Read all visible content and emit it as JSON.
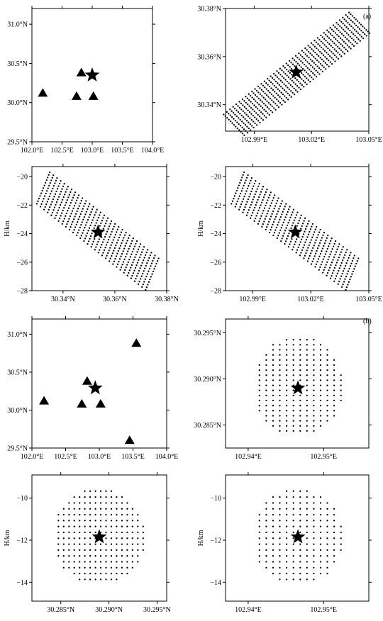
{
  "panel_labels": {
    "a": "(a)",
    "b": "(b)"
  },
  "chart_data": [
    {
      "id": "a-map",
      "type": "scatter",
      "title": "",
      "xlabel": "",
      "ylabel": "",
      "xlim": [
        102.0,
        104.0
      ],
      "ylim": [
        29.5,
        31.2
      ],
      "xticks": [
        102.0,
        102.5,
        103.0,
        103.5,
        104.0
      ],
      "xtick_labels": [
        "102.0°E",
        "102.5°E",
        "103.0°E",
        "103.5°E",
        "104.0°E"
      ],
      "yticks": [
        29.5,
        30.0,
        30.5,
        31.0
      ],
      "ytick_labels": [
        "29.5°N",
        "30.0°N",
        "30.5°N",
        "31.0°N"
      ],
      "series": [
        {
          "marker": "triangle",
          "points": [
            [
              102.18,
              30.12
            ],
            [
              102.82,
              30.38
            ],
            [
              102.74,
              30.08
            ],
            [
              103.02,
              30.08
            ]
          ]
        },
        {
          "marker": "star",
          "points": [
            [
              103.0,
              30.35
            ]
          ]
        }
      ]
    },
    {
      "id": "a-grid-map",
      "type": "scatter",
      "title": "",
      "xlabel": "",
      "ylabel": "",
      "xlim": [
        102.975,
        103.05
      ],
      "ylim": [
        30.329,
        30.38
      ],
      "xticks": [
        102.99,
        103.02,
        103.05
      ],
      "xtick_labels": [
        "102.99°E",
        "103.02°E",
        "103.05°E"
      ],
      "yticks": [
        30.34,
        30.36,
        30.38
      ],
      "ytick_labels": [
        "30.34°N",
        "30.36°N",
        "30.38°N"
      ],
      "grid_cloud": {
        "center": [
          103.012,
          30.353
        ],
        "ux": 0.0328,
        "uy": 0.0212,
        "vx": -0.0056,
        "vy": 0.0045,
        "du": 0.05,
        "dv": 0.16
      },
      "series": [
        {
          "marker": "star",
          "points": [
            [
              103.012,
              30.3535
            ]
          ]
        }
      ]
    },
    {
      "id": "a-depth-lat",
      "type": "scatter",
      "title": "",
      "xlabel": "",
      "ylabel": "H/km",
      "xlim": [
        30.328,
        30.38
      ],
      "ylim": [
        -28,
        -19.3
      ],
      "xticks": [
        30.34,
        30.36,
        30.38
      ],
      "xtick_labels": [
        "30.34°N",
        "30.36°N",
        "30.38°N"
      ],
      "yticks": [
        -28,
        -26,
        -24,
        -22,
        -20
      ],
      "ytick_labels": [
        "−28",
        "−26",
        "−24",
        "−22",
        "−20"
      ],
      "grid_cloud": {
        "center": [
          30.3535,
          -23.9
        ],
        "ux": 0.0212,
        "uy": -3.05,
        "vx": -0.0026,
        "vy": -1.15,
        "du": 0.066,
        "dv": 0.16
      },
      "series": [
        {
          "marker": "star",
          "points": [
            [
              30.3535,
              -23.9
            ]
          ]
        }
      ]
    },
    {
      "id": "a-depth-lon",
      "type": "scatter",
      "title": "",
      "xlabel": "",
      "ylabel": "H/km",
      "xlim": [
        102.976,
        103.05
      ],
      "ylim": [
        -28,
        -19.3
      ],
      "xticks": [
        102.99,
        103.02,
        103.05
      ],
      "xtick_labels": [
        "102.99°E",
        "103.02°E",
        "103.05°E"
      ],
      "yticks": [
        -28,
        -26,
        -24,
        -22,
        -20
      ],
      "ytick_labels": [
        "−28",
        "−26",
        "−24",
        "−22",
        "−20"
      ],
      "grid_cloud": {
        "center": [
          103.012,
          -23.9
        ],
        "ux": 0.0298,
        "uy": -3.05,
        "vx": -0.0034,
        "vy": -1.15,
        "du": 0.066,
        "dv": 0.16
      },
      "series": [
        {
          "marker": "star",
          "points": [
            [
              103.012,
              -23.9
            ]
          ]
        }
      ]
    },
    {
      "id": "b-map",
      "type": "scatter",
      "title": "",
      "xlabel": "",
      "ylabel": "",
      "xlim": [
        102.0,
        104.0
      ],
      "ylim": [
        29.5,
        31.2
      ],
      "xticks": [
        102.0,
        102.5,
        103.0,
        103.5,
        104.0
      ],
      "xtick_labels": [
        "102.0°E",
        "102.5°E",
        "103.0°E",
        "103.5°E",
        "104.0°E"
      ],
      "yticks": [
        29.5,
        30.0,
        30.5,
        31.0
      ],
      "ytick_labels": [
        "29.5°N",
        "30.0°N",
        "30.5°N",
        "31.0°N"
      ],
      "series": [
        {
          "marker": "triangle",
          "points": [
            [
              102.18,
              30.12
            ],
            [
              102.82,
              30.38
            ],
            [
              102.74,
              30.08
            ],
            [
              103.02,
              30.08
            ],
            [
              103.55,
              30.88
            ],
            [
              103.45,
              29.6
            ]
          ]
        },
        {
          "marker": "star",
          "points": [
            [
              102.94,
              30.29
            ]
          ]
        }
      ]
    },
    {
      "id": "b-grid-map",
      "type": "scatter",
      "title": "",
      "xlabel": "",
      "ylabel": "",
      "xlim": [
        102.937,
        102.956
      ],
      "ylim": [
        30.2825,
        30.2965
      ],
      "xticks": [
        102.94,
        102.95
      ],
      "xtick_labels": [
        "102.94°E",
        "102.95°E"
      ],
      "yticks": [
        30.285,
        30.29,
        30.295
      ],
      "ytick_labels": [
        "30.285°N",
        "30.290°N",
        "30.295°N"
      ],
      "grid_cloud": {
        "shape": "ellipse",
        "center": [
          102.9466,
          30.2892
        ],
        "rx": 0.006,
        "ry": 0.0054,
        "dx": 0.0009,
        "dy": 0.00055
      },
      "series": [
        {
          "marker": "star",
          "points": [
            [
              102.9466,
              30.289
            ]
          ]
        }
      ]
    },
    {
      "id": "b-depth-lat",
      "type": "scatter",
      "title": "",
      "xlabel": "",
      "ylabel": "H/km",
      "xlim": [
        30.282,
        30.296
      ],
      "ylim": [
        -14.9,
        -8.9
      ],
      "xticks": [
        30.285,
        30.29,
        30.295
      ],
      "xtick_labels": [
        "30.285°N",
        "30.290°N",
        "30.295°N"
      ],
      "yticks": [
        -14,
        -12,
        -10
      ],
      "ytick_labels": [
        "−14",
        "−12",
        "−10"
      ],
      "grid_cloud": {
        "shape": "ellipse",
        "center": [
          30.289,
          -11.85
        ],
        "rx": 0.0048,
        "ry": 2.3,
        "dx": 0.00055,
        "dy": 0.28
      },
      "series": [
        {
          "marker": "star",
          "points": [
            [
              30.289,
              -11.85
            ]
          ]
        }
      ]
    },
    {
      "id": "b-depth-lon",
      "type": "scatter",
      "title": "",
      "xlabel": "",
      "ylabel": "H/km",
      "xlim": [
        102.937,
        102.956
      ],
      "ylim": [
        -14.9,
        -8.9
      ],
      "xticks": [
        102.94,
        102.95
      ],
      "xtick_labels": [
        "102.94°E",
        "102.95°E"
      ],
      "yticks": [
        -14,
        -12,
        -10
      ],
      "ytick_labels": [
        "−14",
        "−12",
        "−10"
      ],
      "grid_cloud": {
        "shape": "ellipse",
        "center": [
          102.9466,
          -11.85
        ],
        "rx": 0.006,
        "ry": 2.3,
        "dx": 0.0009,
        "dy": 0.28
      },
      "series": [
        {
          "marker": "star",
          "points": [
            [
              102.9466,
              -11.85
            ]
          ]
        }
      ]
    }
  ]
}
